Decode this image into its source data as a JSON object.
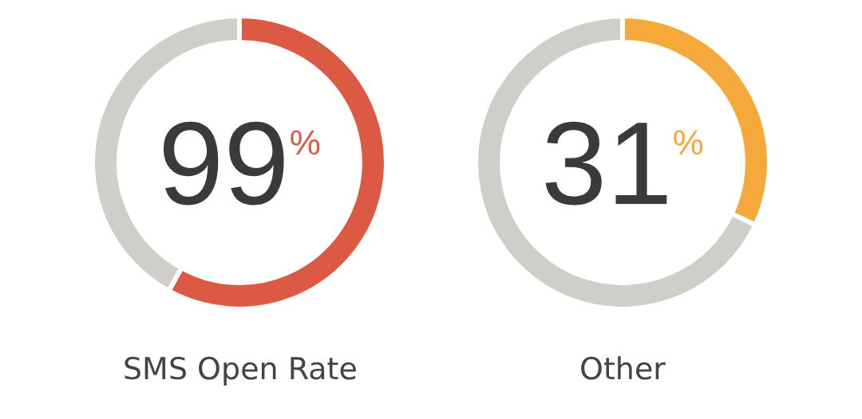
{
  "chart_data": [
    {
      "type": "donut",
      "title": "SMS Open Rate",
      "categories": [
        null,
        null
      ],
      "values": [
        58,
        42
      ],
      "colors": [
        "#dc5a44",
        "#d0cec8"
      ],
      "annotations": [
        "99$^{%}$"
      ]
    },
    {
      "type": "donut",
      "title": "Other",
      "categories": [
        null,
        null
      ],
      "values": [
        32,
        68
      ],
      "colors": [
        "#f4a93a",
        "#d0cec8"
      ],
      "annotations": [
        "31$^{%}$"
      ]
    }
  ]
}
